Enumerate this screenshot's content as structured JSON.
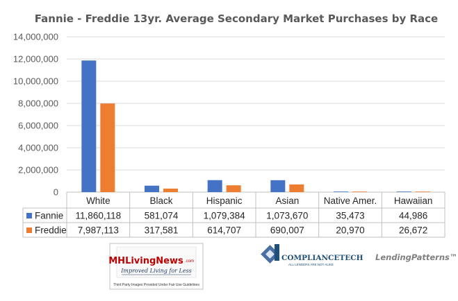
{
  "chart_data": {
    "type": "bar",
    "title": "Fannie - Freddie 13yr. Average Secondary Market Purchases by Race",
    "categories": [
      "White",
      "Black",
      "Hispanic",
      "Asian",
      "Native Amer.",
      "Hawaiian"
    ],
    "series": [
      {
        "name": "Fannie",
        "color": "#4472c4",
        "values": [
          11860118,
          581074,
          1079384,
          1073670,
          35473,
          44986
        ],
        "labels": [
          "11,860,118",
          "581,074",
          "1,079,384",
          "1,073,670",
          "35,473",
          "44,986"
        ]
      },
      {
        "name": "Freddie",
        "color": "#ed7d31",
        "values": [
          7987113,
          317581,
          614707,
          690007,
          20970,
          26672
        ],
        "labels": [
          "7,987,113",
          "317,581",
          "614,707",
          "690,007",
          "20,970",
          "26,672"
        ]
      }
    ],
    "ylim": [
      0,
      14000000
    ],
    "ytick_values": [
      0,
      2000000,
      4000000,
      6000000,
      8000000,
      10000000,
      12000000,
      14000000
    ],
    "ytick_labels": [
      "0",
      "2,000,000",
      "4,000,000",
      "6,000,000",
      "8,000,000",
      "10,000,000",
      "12,000,000",
      "14,000,000"
    ],
    "grid": true,
    "legend": "data-table",
    "xlabel": "",
    "ylabel": ""
  },
  "logos": {
    "mhliving_brand": "MHLivingNews",
    "mhliving_com": ".com",
    "mhliving_tagline": "Improved Living for Less",
    "mhliving_note": "Third Party Images Provided Under Fair Use Guidelines",
    "compliancetech_name": "COMPLIANCETECH",
    "compliancetech_tagline": "ALL LENDERS ARE NOT ALIKE",
    "lendingpatterns": "LendingPatterns™"
  }
}
